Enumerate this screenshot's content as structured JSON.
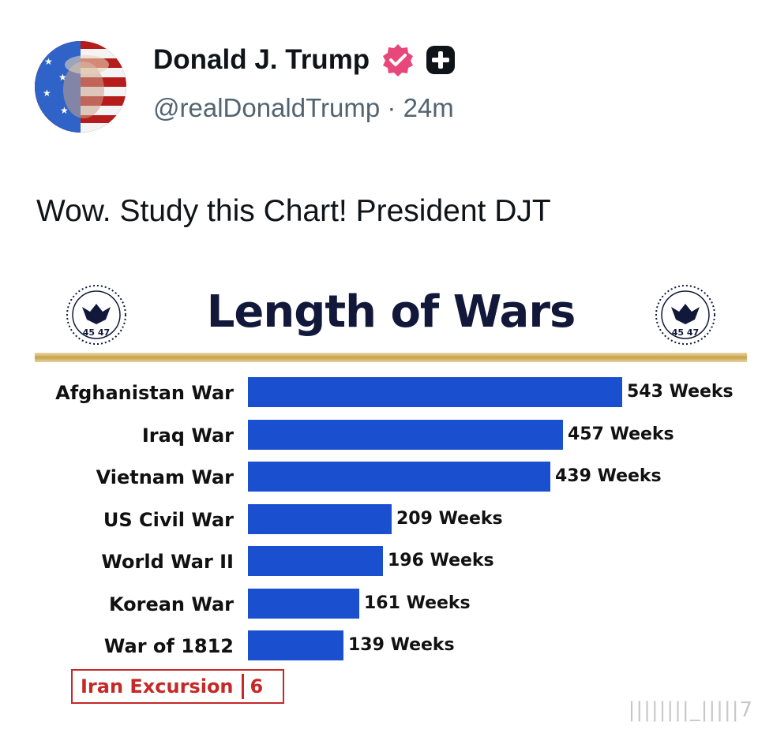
{
  "post": {
    "display_name": "Donald J. Trump",
    "handle": "@realDonaldTrump",
    "separator": "·",
    "time": "24m",
    "text": "Wow. Study this Chart! President DJT"
  },
  "chart_data": {
    "type": "bar",
    "orientation": "horizontal",
    "title": "Length of Wars",
    "seal_text": "45 47",
    "categories": [
      "Afghanistan War",
      "Iraq War",
      "Vietnam War",
      "US Civil War",
      "World War II",
      "Korean War",
      "War of 1812"
    ],
    "values": [
      543,
      457,
      439,
      209,
      196,
      161,
      139
    ],
    "value_labels": [
      "543 Weeks",
      "457 Weeks",
      "439 Weeks",
      "209 Weeks",
      "196 Weeks",
      "161 Weeks",
      "139 Weeks"
    ],
    "bar_color": "#1a4fd0",
    "highlight": {
      "label": "Iran Excursion",
      "value": "6",
      "color": "#c62828"
    }
  },
  "watermark": "||||||||_|||||7"
}
